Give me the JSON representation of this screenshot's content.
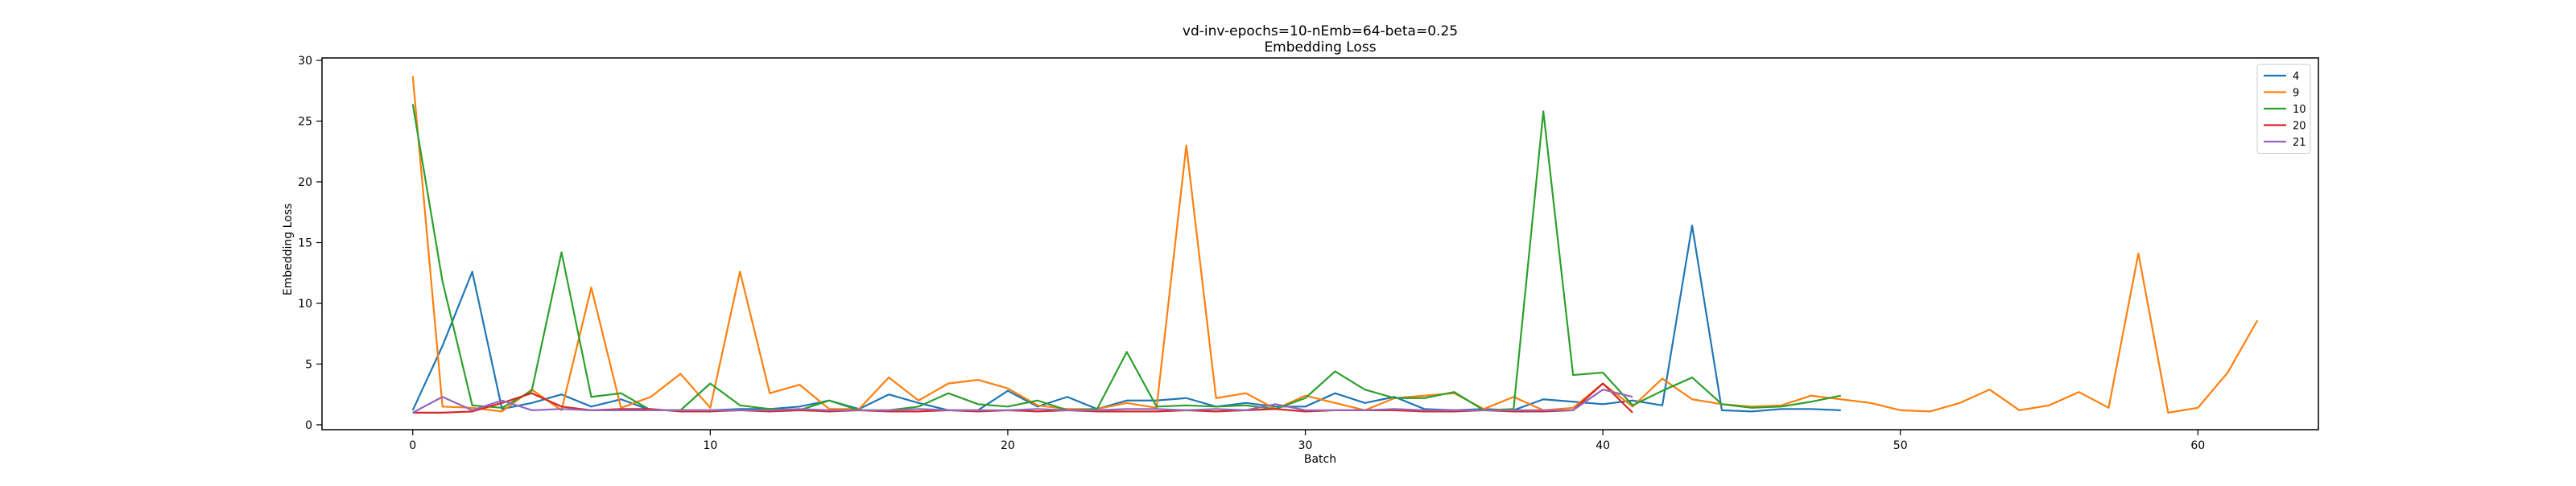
{
  "chart_data": {
    "type": "line",
    "title": "vd-inv-epochs=10-nEmb=64-beta=0.25",
    "subtitle": "Embedding Loss",
    "xlabel": "Batch",
    "ylabel": "Embedding Loss",
    "xlim": [
      -3.05,
      64.05
    ],
    "ylim": [
      -0.4,
      30.2
    ],
    "xticks": [
      0,
      10,
      20,
      30,
      40,
      50,
      60
    ],
    "yticks": [
      0,
      5,
      10,
      15,
      20,
      25,
      30
    ],
    "grid": false,
    "legend_position": "top-right",
    "series": [
      {
        "name": "4",
        "color": "#1f77b4",
        "values": [
          1.2,
          6.5,
          12.6,
          1.3,
          1.8,
          2.5,
          1.5,
          2.1,
          1.2,
          1.2,
          1.2,
          1.3,
          1.3,
          1.5,
          2.0,
          1.3,
          2.5,
          1.8,
          1.2,
          1.2,
          2.8,
          1.5,
          2.3,
          1.3,
          2.0,
          2.0,
          2.2,
          1.5,
          1.8,
          1.5,
          1.5,
          2.6,
          1.8,
          2.3,
          1.3,
          1.2,
          1.3,
          1.2,
          2.1,
          1.9,
          1.7,
          2.0,
          1.6,
          16.4,
          1.2,
          1.1,
          1.3,
          1.3,
          1.2
        ]
      },
      {
        "name": "9",
        "color": "#ff7f0e",
        "values": [
          28.7,
          1.5,
          1.4,
          1.1,
          2.9,
          1.2,
          11.3,
          1.4,
          2.3,
          4.2,
          1.4,
          12.6,
          2.6,
          3.3,
          1.3,
          1.3,
          3.9,
          2.0,
          3.4,
          3.7,
          3.0,
          1.6,
          1.3,
          1.3,
          1.8,
          1.4,
          23.0,
          2.2,
          2.6,
          1.3,
          2.4,
          1.8,
          1.2,
          2.2,
          2.4,
          2.6,
          1.3,
          2.3,
          1.2,
          1.4,
          3.4,
          1.5,
          3.8,
          2.1,
          1.7,
          1.5,
          1.6,
          2.4,
          2.1,
          1.8,
          1.2,
          1.1,
          1.8,
          2.9,
          1.2,
          1.6,
          2.7,
          1.4,
          14.1,
          1.0,
          1.4,
          4.3,
          8.6
        ]
      },
      {
        "name": "10",
        "color": "#2ca02c",
        "values": [
          26.4,
          11.8,
          1.6,
          1.4,
          2.8,
          14.2,
          2.3,
          2.6,
          1.2,
          1.2,
          3.4,
          1.6,
          1.3,
          1.2,
          2.0,
          1.2,
          1.2,
          1.5,
          2.6,
          1.7,
          1.5,
          2.0,
          1.2,
          1.3,
          6.0,
          1.5,
          1.6,
          1.5,
          1.6,
          1.3,
          2.2,
          4.4,
          2.9,
          2.2,
          2.2,
          2.7,
          1.2,
          1.3,
          25.8,
          4.1,
          4.3,
          1.6,
          2.8,
          3.9,
          1.7,
          1.4,
          1.5,
          1.9,
          2.4
        ]
      },
      {
        "name": "20",
        "color": "#d62728",
        "values": [
          1.0,
          1.0,
          1.1,
          1.8,
          2.6,
          1.5,
          1.2,
          1.3,
          1.3,
          1.1,
          1.1,
          1.2,
          1.1,
          1.2,
          1.1,
          1.2,
          1.1,
          1.1,
          1.2,
          1.1,
          1.2,
          1.1,
          1.2,
          1.1,
          1.1,
          1.1,
          1.2,
          1.1,
          1.2,
          1.3,
          1.1,
          1.2,
          1.2,
          1.2,
          1.1,
          1.1,
          1.2,
          1.1,
          1.1,
          1.2,
          3.4,
          1.0
        ]
      },
      {
        "name": "21",
        "color": "#9467bd",
        "values": [
          1.0,
          2.3,
          1.2,
          2.0,
          1.2,
          1.3,
          1.2,
          1.2,
          1.2,
          1.2,
          1.2,
          1.2,
          1.2,
          1.3,
          1.2,
          1.2,
          1.2,
          1.3,
          1.2,
          1.2,
          1.2,
          1.3,
          1.2,
          1.2,
          1.3,
          1.3,
          1.2,
          1.3,
          1.2,
          1.7,
          1.2,
          1.2,
          1.2,
          1.3,
          1.2,
          1.2,
          1.2,
          1.2,
          1.2,
          1.2,
          2.9,
          2.3
        ]
      }
    ]
  }
}
